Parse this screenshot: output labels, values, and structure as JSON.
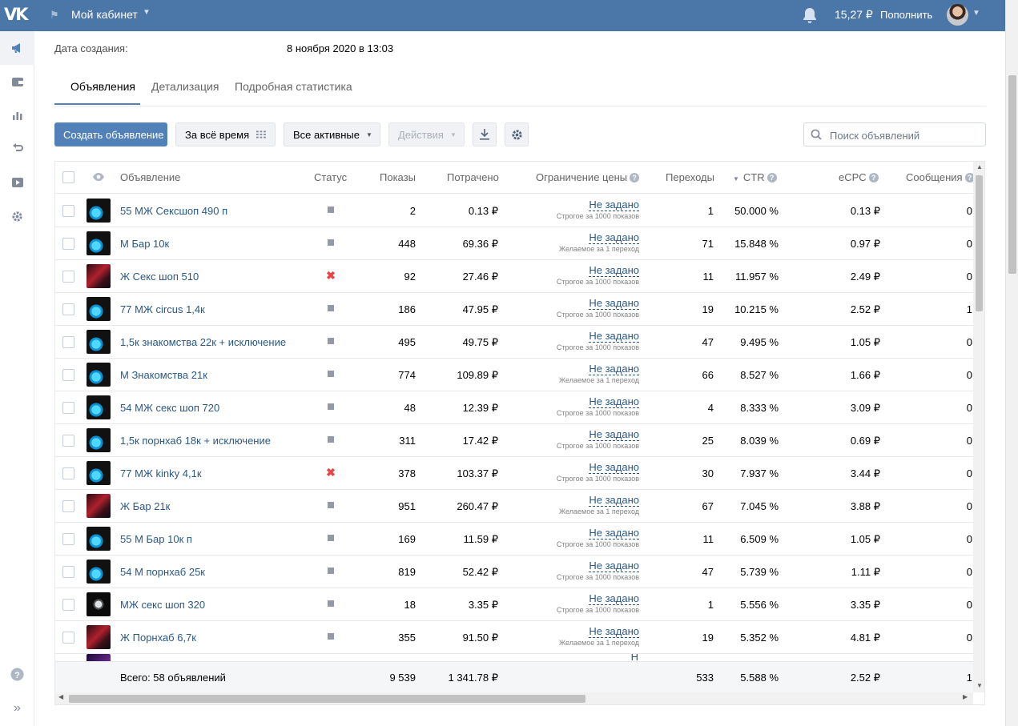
{
  "topbar": {
    "logo": "VK",
    "cabinet_title": "Мой кабинет",
    "balance": "15,27 ₽",
    "topup_label": "Пополнить"
  },
  "sidebar": {
    "items": [
      {
        "icon": "megaphone-icon",
        "active": true
      },
      {
        "icon": "wallet-icon",
        "active": false
      },
      {
        "icon": "chart-icon",
        "active": false
      },
      {
        "icon": "retarget-icon",
        "active": false
      },
      {
        "icon": "video-icon",
        "active": false
      },
      {
        "icon": "gear-icon",
        "active": false
      }
    ],
    "help_icon": "help-icon",
    "collapse_icon": "expand-icon"
  },
  "meta": {
    "created_label": "Дата создания:",
    "created_value": "8 ноября 2020 в 13:03"
  },
  "tabs": [
    {
      "label": "Объявления",
      "active": true
    },
    {
      "label": "Детализация",
      "active": false
    },
    {
      "label": "Подробная статистика",
      "active": false
    }
  ],
  "toolbar": {
    "create_label": "Создать объявление",
    "period_label": "За всё время",
    "filter_label": "Все активные",
    "actions_label": "Действия",
    "search_placeholder": "Поиск объявлений"
  },
  "table": {
    "headers": {
      "ad": "Объявление",
      "status": "Статус",
      "impressions": "Показы",
      "spent": "Потрачено",
      "price_limit": "Ограничение цены",
      "clicks": "Переходы",
      "ctr": "CTR",
      "ecpc": "eCPC",
      "messages": "Сообщения"
    },
    "rows": [
      {
        "thumb": "blue",
        "name": "55 МЖ Сексшоп 490 п",
        "status": "stopped",
        "impressions": "2",
        "spent": "0.13 ₽",
        "limit": "Не задано",
        "limit_note": "Строгое за 1000 показов",
        "clicks": "1",
        "ctr": "50.000 %",
        "ecpc": "0.13 ₽",
        "messages": "0"
      },
      {
        "thumb": "blue",
        "name": "М Бар 10к",
        "status": "stopped",
        "impressions": "448",
        "spent": "69.36 ₽",
        "limit": "Не задано",
        "limit_note": "Желаемое за 1 переход",
        "clicks": "71",
        "ctr": "15.848 %",
        "ecpc": "0.97 ₽",
        "messages": "0"
      },
      {
        "thumb": "red",
        "name": "Ж Секс шоп 510",
        "status": "rejected",
        "impressions": "92",
        "spent": "27.46 ₽",
        "limit": "Не задано",
        "limit_note": "Строгое за 1000 показов",
        "clicks": "11",
        "ctr": "11.957 %",
        "ecpc": "2.49 ₽",
        "messages": "0"
      },
      {
        "thumb": "blue",
        "name": "77 МЖ circus 1,4к",
        "status": "stopped",
        "impressions": "186",
        "spent": "47.95 ₽",
        "limit": "Не задано",
        "limit_note": "Строгое за 1000 показов",
        "clicks": "19",
        "ctr": "10.215 %",
        "ecpc": "2.52 ₽",
        "messages": "1"
      },
      {
        "thumb": "blue",
        "name": "1,5к знакомства 22к + исключение",
        "status": "stopped",
        "impressions": "495",
        "spent": "49.75 ₽",
        "limit": "Не задано",
        "limit_note": "Строгое за 1000 показов",
        "clicks": "47",
        "ctr": "9.495 %",
        "ecpc": "1.05 ₽",
        "messages": "0"
      },
      {
        "thumb": "blue",
        "name": "М Знакомства 21к",
        "status": "stopped",
        "impressions": "774",
        "spent": "109.89 ₽",
        "limit": "Не задано",
        "limit_note": "Желаемое за 1 переход",
        "clicks": "66",
        "ctr": "8.527 %",
        "ecpc": "1.66 ₽",
        "messages": "0"
      },
      {
        "thumb": "blue",
        "name": "54 МЖ секс шоп 720",
        "status": "stopped",
        "impressions": "48",
        "spent": "12.39 ₽",
        "limit": "Не задано",
        "limit_note": "Строгое за 1000 показов",
        "clicks": "4",
        "ctr": "8.333 %",
        "ecpc": "3.09 ₽",
        "messages": "0"
      },
      {
        "thumb": "blue",
        "name": "1,5к порнхаб 18к + исключение",
        "status": "stopped",
        "impressions": "311",
        "spent": "17.42 ₽",
        "limit": "Не задано",
        "limit_note": "Строгое за 1000 показов",
        "clicks": "25",
        "ctr": "8.039 %",
        "ecpc": "0.69 ₽",
        "messages": "0"
      },
      {
        "thumb": "blue",
        "name": "77 МЖ kinky 4,1к",
        "status": "rejected",
        "impressions": "378",
        "spent": "103.37 ₽",
        "limit": "Не задано",
        "limit_note": "Строгое за 1000 показов",
        "clicks": "30",
        "ctr": "7.937 %",
        "ecpc": "3.44 ₽",
        "messages": "0"
      },
      {
        "thumb": "red",
        "name": "Ж Бар 21к",
        "status": "stopped",
        "impressions": "951",
        "spent": "260.47 ₽",
        "limit": "Не задано",
        "limit_note": "Желаемое за 1 переход",
        "clicks": "67",
        "ctr": "7.045 %",
        "ecpc": "3.88 ₽",
        "messages": "0"
      },
      {
        "thumb": "blue",
        "name": "55 М Бар 10к п",
        "status": "stopped",
        "impressions": "169",
        "spent": "11.59 ₽",
        "limit": "Не задано",
        "limit_note": "Строгое за 1000 показов",
        "clicks": "11",
        "ctr": "6.509 %",
        "ecpc": "1.05 ₽",
        "messages": "0"
      },
      {
        "thumb": "blue",
        "name": "54 М порнхаб 25к",
        "status": "stopped",
        "impressions": "819",
        "spent": "52.42 ₽",
        "limit": "Не задано",
        "limit_note": "Строгое за 1000 показов",
        "clicks": "47",
        "ctr": "5.739 %",
        "ecpc": "1.11 ₽",
        "messages": "0"
      },
      {
        "thumb": "dark",
        "name": "МЖ секс шоп 320",
        "status": "stopped",
        "impressions": "18",
        "spent": "3.35 ₽",
        "limit": "Не задано",
        "limit_note": "Строгое за 1000 показов",
        "clicks": "1",
        "ctr": "5.556 %",
        "ecpc": "3.35 ₽",
        "messages": "0"
      },
      {
        "thumb": "red",
        "name": "Ж Порнхаб 6,7к",
        "status": "stopped",
        "impressions": "355",
        "spent": "91.50 ₽",
        "limit": "Не задано",
        "limit_note": "Желаемое за 1 переход",
        "clicks": "19",
        "ctr": "5.352 %",
        "ecpc": "4.81 ₽",
        "messages": "0"
      }
    ],
    "totals": {
      "label": "Всего: 58 объявлений",
      "impressions": "9 539",
      "spent": "1 341.78 ₽",
      "clicks": "533",
      "ctr": "5.588 %",
      "ecpc": "2.52 ₽",
      "messages": "1"
    }
  },
  "colors": {
    "header_bg": "#4a76a8",
    "accent": "#5181b8",
    "link": "#2a5885",
    "rejected": "#e64646"
  }
}
